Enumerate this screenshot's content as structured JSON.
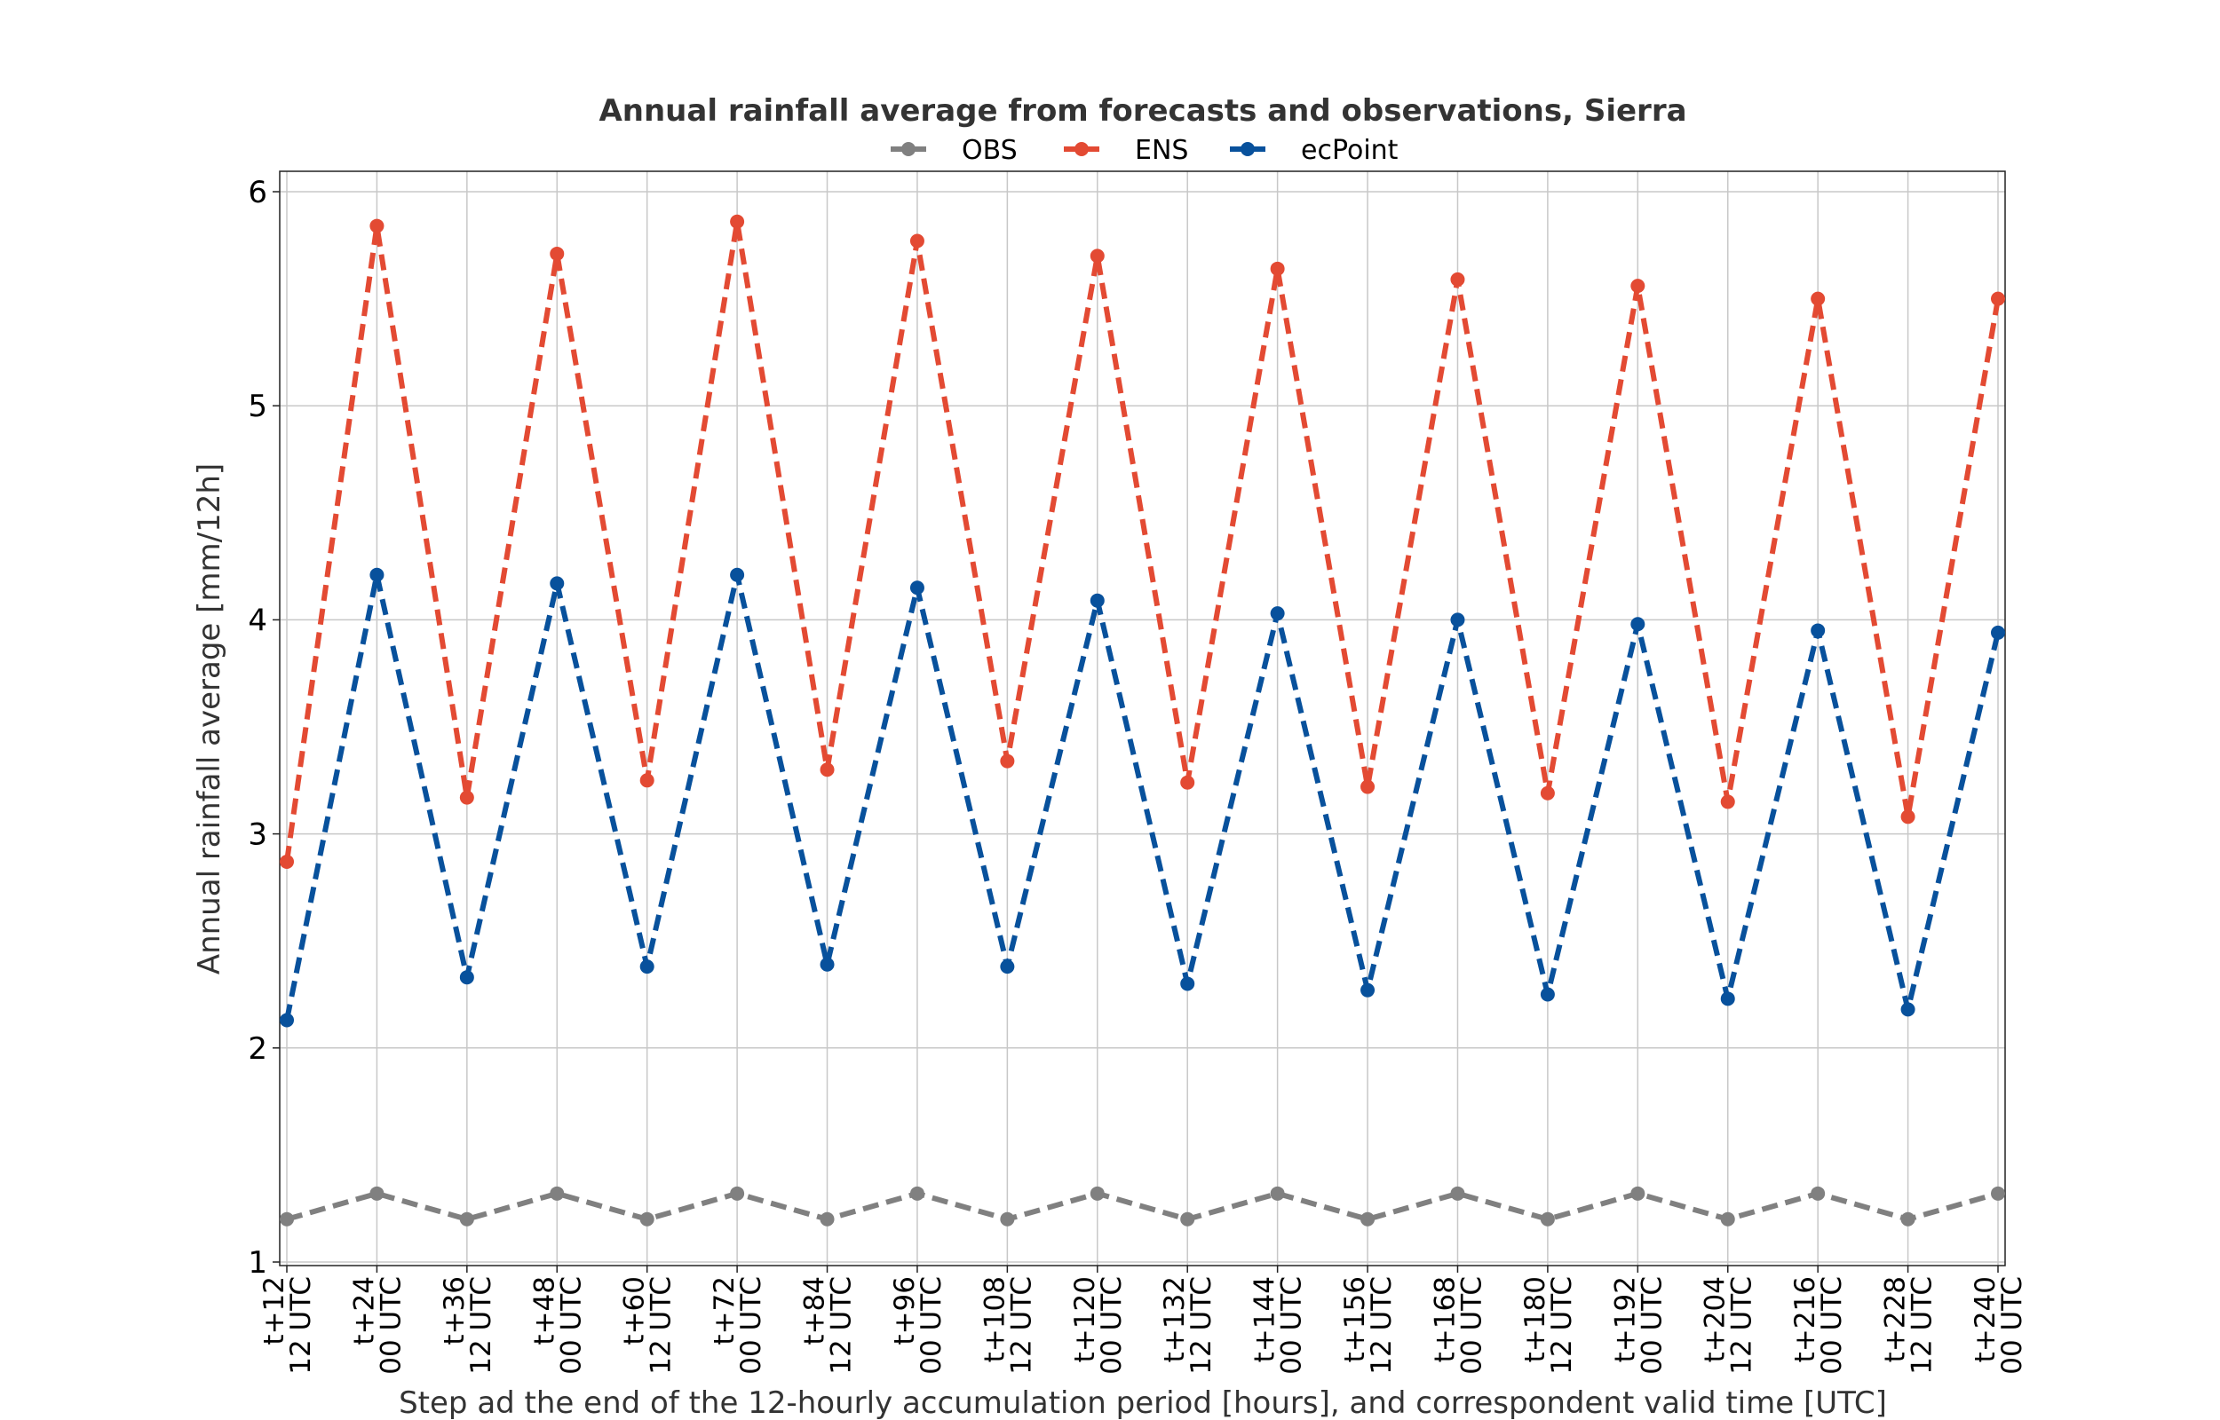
{
  "chart_data": {
    "type": "line",
    "title": "Annual rainfall average from forecasts and observations, Sierra",
    "xlabel": "Step ad the end of the 12-hourly accumulation period [hours], and correspondent valid time [UTC]",
    "ylabel": "Annual rainfall average [mm/12h]",
    "ylim": [
      1,
      6
    ],
    "yticks": [
      "1",
      "2",
      "3",
      "4",
      "5",
      "6"
    ],
    "grid": true,
    "legend_position": "top-center",
    "categories": [
      {
        "step": "t+12",
        "time": "12 UTC"
      },
      {
        "step": "t+24",
        "time": "00 UTC"
      },
      {
        "step": "t+36",
        "time": "12 UTC"
      },
      {
        "step": "t+48",
        "time": "00 UTC"
      },
      {
        "step": "t+60",
        "time": "12 UTC"
      },
      {
        "step": "t+72",
        "time": "00 UTC"
      },
      {
        "step": "t+84",
        "time": "12 UTC"
      },
      {
        "step": "t+96",
        "time": "00 UTC"
      },
      {
        "step": "t+108",
        "time": "12 UTC"
      },
      {
        "step": "t+120",
        "time": "00 UTC"
      },
      {
        "step": "t+132",
        "time": "12 UTC"
      },
      {
        "step": "t+144",
        "time": "00 UTC"
      },
      {
        "step": "t+156",
        "time": "12 UTC"
      },
      {
        "step": "t+168",
        "time": "00 UTC"
      },
      {
        "step": "t+180",
        "time": "12 UTC"
      },
      {
        "step": "t+192",
        "time": "00 UTC"
      },
      {
        "step": "t+204",
        "time": "12 UTC"
      },
      {
        "step": "t+216",
        "time": "00 UTC"
      },
      {
        "step": "t+228",
        "time": "12 UTC"
      },
      {
        "step": "t+240",
        "time": "00 UTC"
      }
    ],
    "series": [
      {
        "name": "OBS",
        "color": "#808080",
        "values": [
          1.2,
          1.32,
          1.2,
          1.32,
          1.2,
          1.32,
          1.2,
          1.32,
          1.2,
          1.32,
          1.2,
          1.32,
          1.2,
          1.32,
          1.2,
          1.32,
          1.2,
          1.32,
          1.2,
          1.32
        ]
      },
      {
        "name": "ENS",
        "color": "#e34a33",
        "values": [
          2.87,
          5.84,
          3.17,
          5.71,
          3.25,
          5.86,
          3.3,
          5.77,
          3.34,
          5.7,
          3.24,
          5.64,
          3.22,
          5.59,
          3.19,
          5.56,
          3.15,
          5.5,
          3.08,
          5.5
        ]
      },
      {
        "name": "ecPoint",
        "color": "#08519c",
        "values": [
          2.13,
          4.21,
          2.33,
          4.17,
          2.38,
          4.21,
          2.39,
          4.15,
          2.38,
          4.09,
          2.3,
          4.03,
          2.27,
          4.0,
          2.25,
          3.98,
          2.23,
          3.95,
          2.18,
          3.94
        ]
      }
    ]
  }
}
